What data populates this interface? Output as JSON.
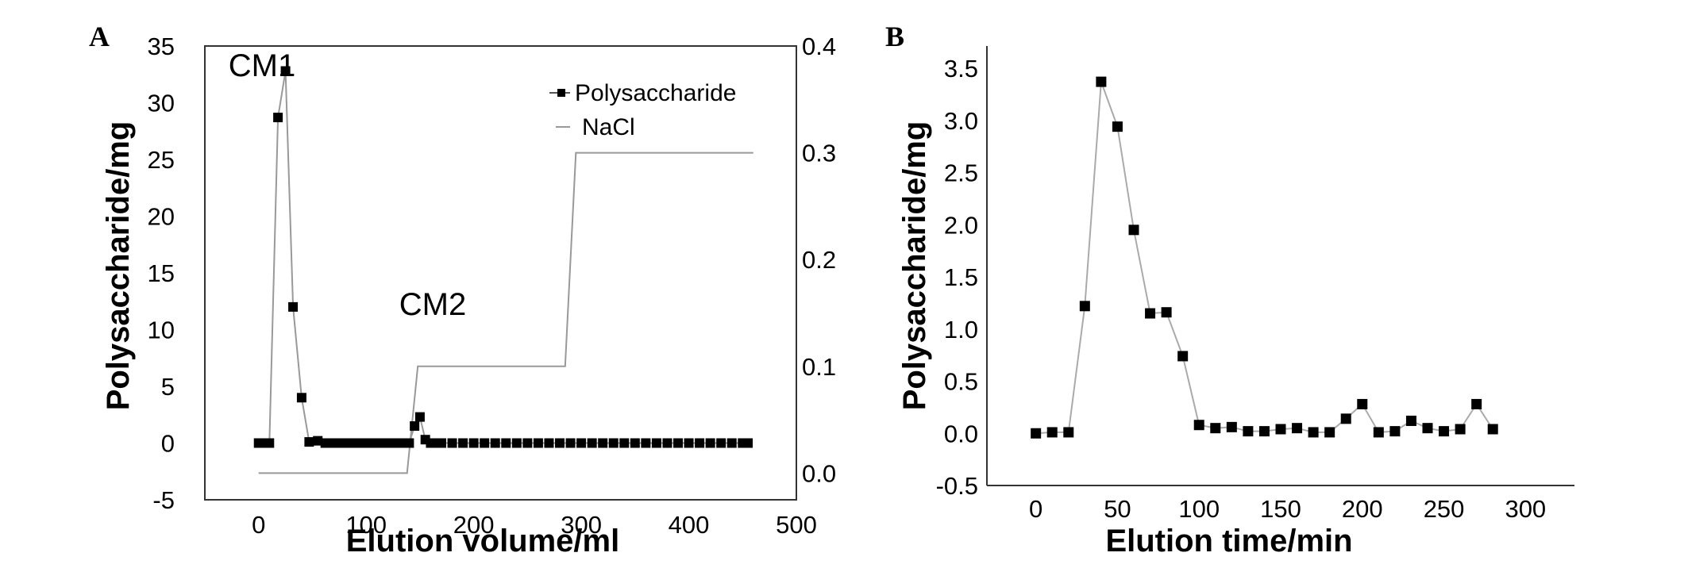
{
  "chart_data": [
    {
      "panel": "A",
      "type": "line",
      "xlabel": "Elution volume/ml",
      "ylabel": "Polysaccharide/mg",
      "xlim": [
        -50,
        500
      ],
      "ylim": [
        -5,
        35
      ],
      "y2lim": [
        -0.025,
        0.4
      ],
      "xticks": [
        0,
        100,
        200,
        300,
        400,
        500
      ],
      "yticks": [
        -5,
        0,
        5,
        10,
        15,
        20,
        25,
        30,
        35
      ],
      "y2ticks": [
        0.0,
        0.1,
        0.2,
        0.3,
        0.4
      ],
      "xtick_labels": [
        "0",
        "100",
        "200",
        "300",
        "400",
        "500"
      ],
      "ytick_labels": [
        "-5",
        "0",
        "5",
        "10",
        "15",
        "20",
        "25",
        "30",
        "35"
      ],
      "y2tick_labels": [
        "0.0",
        "0.1",
        "0.2",
        "0.3",
        "0.4"
      ],
      "legend_position": "top-right",
      "annotations": [
        {
          "text": "CM1",
          "x": 25,
          "y": 33
        },
        {
          "text": "CM2",
          "x": 155,
          "y": 12.5
        }
      ],
      "series": [
        {
          "name": "Polysaccharide",
          "axis": "left",
          "marker": "square",
          "color": "#000000",
          "line_color": "#999999",
          "x": [
            0,
            5,
            10,
            18,
            25,
            32,
            40,
            47,
            55,
            62,
            70,
            75,
            80,
            85,
            90,
            95,
            100,
            105,
            110,
            115,
            120,
            125,
            130,
            135,
            140,
            145,
            150,
            155,
            160,
            165,
            170,
            180,
            190,
            200,
            210,
            220,
            230,
            240,
            250,
            260,
            270,
            280,
            290,
            300,
            310,
            320,
            330,
            340,
            350,
            360,
            370,
            380,
            390,
            400,
            410,
            420,
            430,
            440,
            450,
            455
          ],
          "y": [
            0,
            0,
            0,
            28.7,
            32.8,
            12,
            4,
            0.1,
            0.2,
            0,
            0,
            0,
            0,
            0,
            0,
            0,
            0,
            0,
            0,
            0,
            0,
            0,
            0,
            0,
            0,
            1.5,
            2.3,
            0.3,
            0,
            0,
            0,
            0,
            0,
            0,
            0,
            0,
            0,
            0,
            0,
            0,
            0,
            0,
            0,
            0,
            0,
            0,
            0,
            0,
            0,
            0,
            0,
            0,
            0,
            0,
            0,
            0,
            0,
            0,
            0,
            0
          ]
        },
        {
          "name": "NaCl",
          "axis": "right",
          "marker": "none",
          "color": "#999999",
          "step_x": [
            0,
            138,
            148,
            285,
            295,
            460
          ],
          "step_y": [
            0,
            0,
            0.1,
            0.1,
            0.3,
            0.3
          ]
        }
      ]
    },
    {
      "panel": "B",
      "type": "line",
      "xlabel": "Elution time/min",
      "ylabel": "Polysaccharide/mg",
      "xlim": [
        -30,
        330
      ],
      "ylim": [
        -0.5,
        3.5
      ],
      "xticks": [
        0,
        50,
        100,
        150,
        200,
        250,
        300
      ],
      "yticks": [
        -0.5,
        0.0,
        0.5,
        1.0,
        1.5,
        2.0,
        2.5,
        3.0,
        3.5
      ],
      "xtick_labels": [
        "0",
        "50",
        "100",
        "150",
        "200",
        "250",
        "300"
      ],
      "ytick_labels": [
        "-0.5",
        "0.0",
        "0.5",
        "1.0",
        "1.5",
        "2.0",
        "2.5",
        "3.0",
        "3.5"
      ],
      "series": [
        {
          "marker": "square",
          "color": "#000000",
          "line_color": "#aaaaaa",
          "x": [
            0,
            10,
            20,
            30,
            40,
            50,
            60,
            70,
            80,
            90,
            100,
            110,
            120,
            130,
            140,
            150,
            160,
            170,
            180,
            190,
            200,
            210,
            220,
            230,
            240,
            250,
            260,
            270,
            280
          ],
          "y": [
            0.0,
            0.01,
            0.01,
            1.22,
            3.37,
            2.94,
            1.95,
            1.15,
            1.16,
            0.74,
            0.08,
            0.05,
            0.06,
            0.02,
            0.02,
            0.04,
            0.05,
            0.01,
            0.01,
            0.14,
            0.28,
            0.01,
            0.02,
            0.12,
            0.05,
            0.02,
            0.04,
            0.28,
            0.04
          ]
        }
      ]
    }
  ]
}
